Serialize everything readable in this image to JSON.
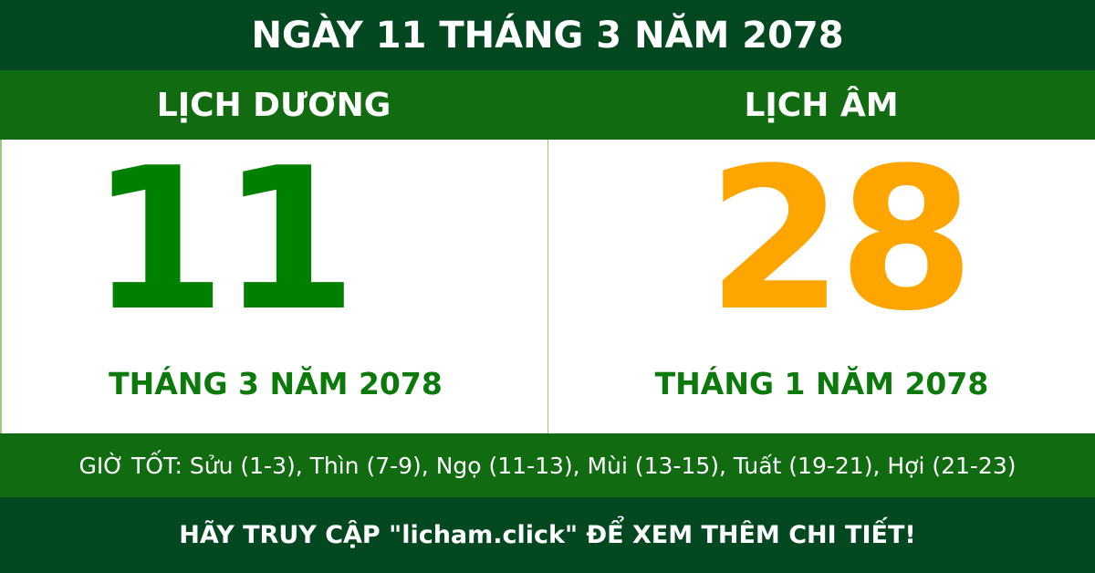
{
  "title": "NGÀY 11 THÁNG 3 NĂM 2078",
  "solar": {
    "label": "LỊCH DƯƠNG",
    "day": "11",
    "month_year": "THÁNG 3 NĂM 2078"
  },
  "lunar": {
    "label": "LỊCH ÂM",
    "day": "28",
    "month_year": "THÁNG 1 NĂM 2078"
  },
  "good_hours": "GIỜ TỐT: Sửu (1-3), Thìn (7-9), Ngọ (11-13), Mùi (13-15), Tuất (19-21), Hợi (21-23)",
  "footer": "HÃY TRUY CẬP \"licham.click\" ĐỂ XEM THÊM CHI TIẾT!",
  "colors": {
    "dark_green": "#034821",
    "green": "#116b11",
    "solar_day": "#008000",
    "lunar_day": "#ffa500"
  }
}
